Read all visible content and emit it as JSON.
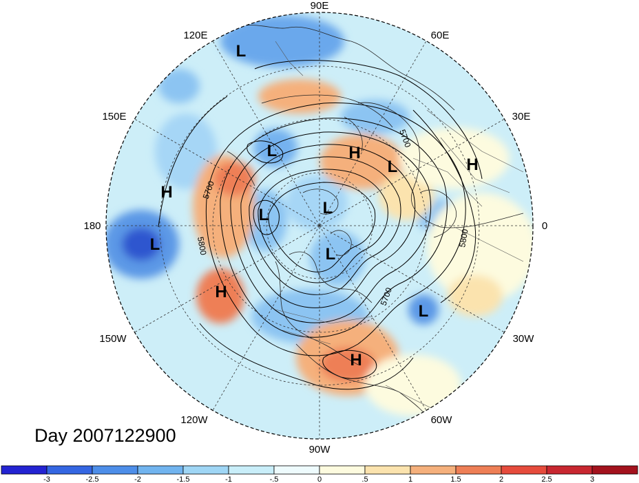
{
  "title": "Day 2007122900",
  "longitude_labels": {
    "lon_90e": "90E",
    "lon_60e": "60E",
    "lon_30e": "30E",
    "lon_0": "0",
    "lon_30w": "30W",
    "lon_60w": "60W",
    "lon_90w": "90W",
    "lon_120w": "120W",
    "lon_150w": "150W",
    "lon_180": "180",
    "lon_150e": "150E",
    "lon_120e": "120E"
  },
  "pressure_centers": {
    "low_symbol": "L",
    "high_symbol": "H"
  },
  "contour_labels": {
    "c5700_a": "5700",
    "c5800_a": "5800",
    "c5700_b": "5700",
    "c5800_b": "5800",
    "c5700_c": "5700"
  },
  "colorbar": {
    "ticks": [
      "-3",
      "-2.5",
      "-2",
      "-1.5",
      "-1",
      "-.5",
      "0",
      ".5",
      "1",
      "1.5",
      "2",
      "2.5",
      "3"
    ],
    "colors": [
      "#2323d2",
      "#3466e2",
      "#4d8ee9",
      "#71b4ef",
      "#9fd6f5",
      "#c9eef9",
      "#eefbfd",
      "#fdfbdf",
      "#fbe3ae",
      "#f5b07c",
      "#ee7f56",
      "#e64b3c",
      "#c82730",
      "#a3121d"
    ]
  }
}
